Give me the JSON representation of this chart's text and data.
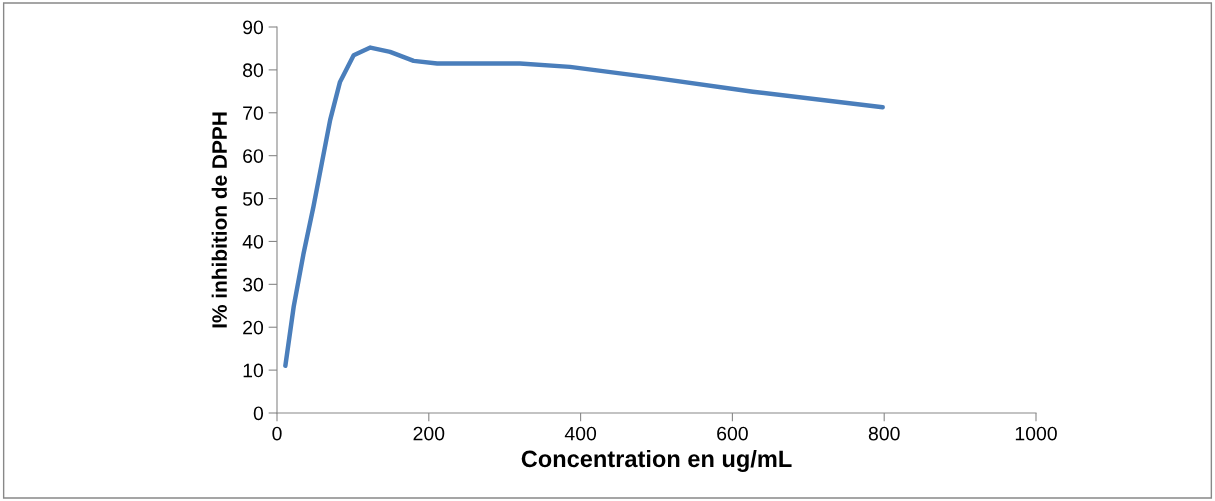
{
  "chart_data": {
    "type": "line",
    "xlabel": "Concentration en ug/mL",
    "ylabel": "I% inhibition de DPPH",
    "x": [
      11,
      22,
      35,
      48,
      59,
      70,
      83,
      101,
      123,
      149,
      180,
      211,
      254,
      320,
      386,
      495,
      627,
      798
    ],
    "series": [
      {
        "color": "#4a7ebb",
        "values": [
          11,
          24.8,
          37.2,
          48.1,
          58.2,
          68.3,
          77.2,
          83.4,
          85.2,
          84.2,
          82.1,
          81.5,
          81.5,
          81.5,
          80.7,
          78.2,
          74.9,
          71.3
        ]
      }
    ],
    "xlim": [
      0,
      1000
    ],
    "xticks": [
      0,
      200,
      400,
      600,
      800,
      1000
    ],
    "ylim": [
      0,
      90
    ],
    "yticks": [
      0,
      10,
      20,
      30,
      40,
      50,
      60,
      70,
      80,
      90
    ],
    "grid": false,
    "marker": "none",
    "line_style": "solid"
  }
}
